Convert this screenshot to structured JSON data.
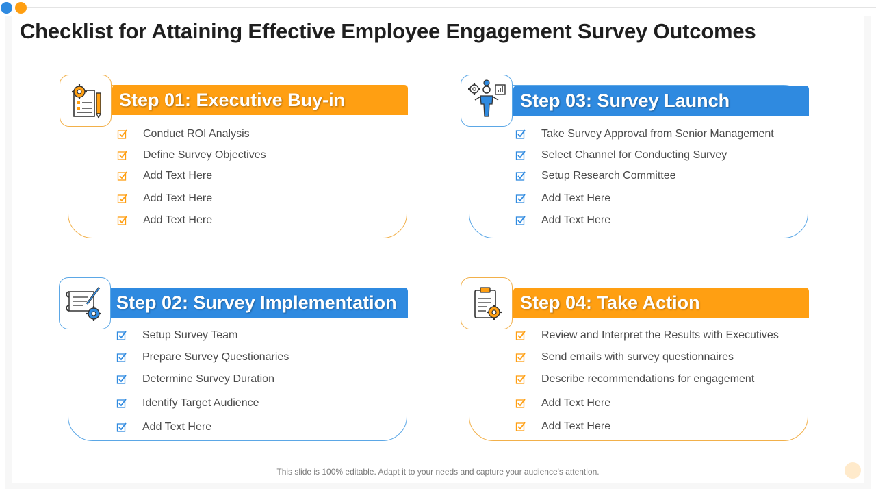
{
  "colors": {
    "orange": "#FF9F12",
    "blue": "#2F8AE0",
    "orange_border": "#F2B04A",
    "blue_border": "#5BA7E6"
  },
  "title": "Checklist for Attaining Effective Employee Engagement Survey Outcomes",
  "footer": "This slide is 100% editable. Adapt it to your needs and capture your audience's attention.",
  "steps": [
    {
      "heading": "Step 01: Executive Buy-in",
      "accent": "orange",
      "icon": "settings-document-pencil-icon",
      "items": [
        "Conduct ROI Analysis",
        "Define Survey  Objectives",
        "Add Text Here",
        "Add Text Here",
        "Add Text Here"
      ]
    },
    {
      "heading": "Step 03: Survey Launch",
      "accent": "blue",
      "icon": "person-ideas-chart-icon",
      "items": [
        "Take Survey Approval from Senior Management",
        "Select Channel for Conducting Survey",
        "Setup Research Committee",
        "Add Text Here",
        "Add Text Here"
      ]
    },
    {
      "heading": "Step 02: Survey Implementation",
      "accent": "blue",
      "icon": "blueprint-pencil-gear-icon",
      "items": [
        "Setup Survey  Team",
        "Prepare Survey Questionaries",
        "Determine Survey  Duration",
        "Identify  Target Audience",
        "Add Text Here"
      ]
    },
    {
      "heading": "Step 04: Take Action",
      "accent": "orange",
      "icon": "clipboard-gear-icon",
      "items": [
        "Review and Interpret the Results with Executives",
        "Send emails with survey questionnaires",
        "Describe recommendations for engagement",
        "Add Text Here",
        "Add Text Here"
      ]
    }
  ]
}
